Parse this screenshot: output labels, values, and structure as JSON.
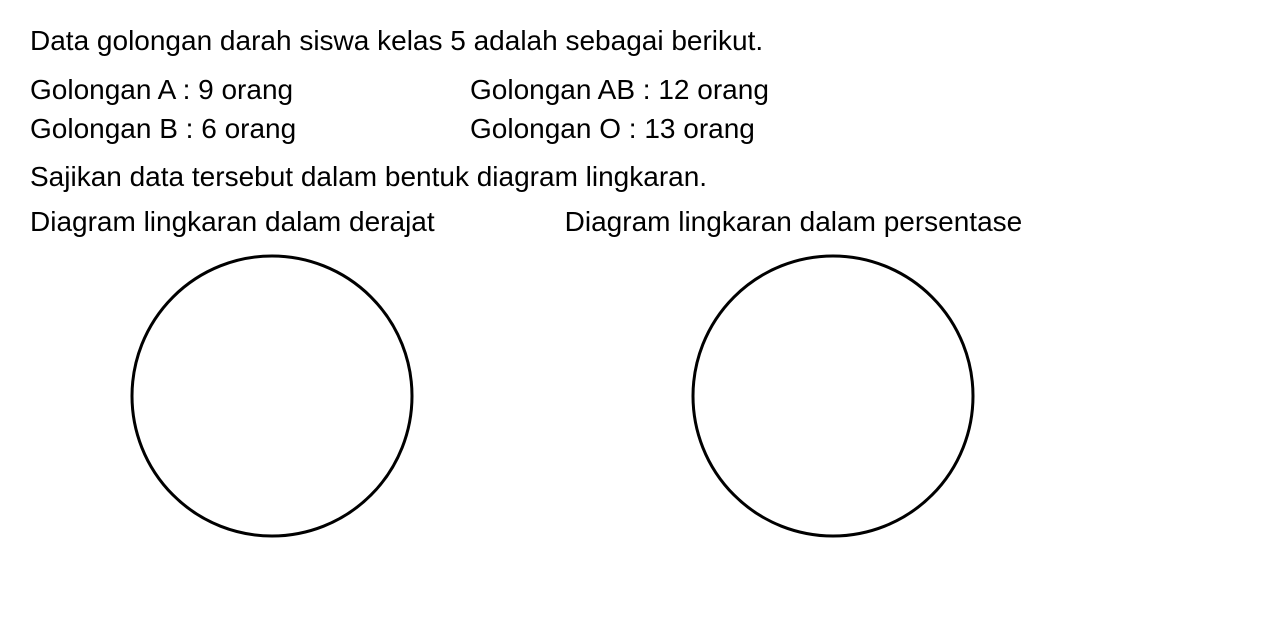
{
  "intro": "Data golongan darah siswa kelas 5 adalah sebagai berikut.",
  "data": {
    "row1": {
      "left": "Golongan A : 9 orang",
      "right": "Golongan AB : 12 orang"
    },
    "row2": {
      "left": "Golongan B : 6 orang",
      "right": "Golongan O  :  13 orang"
    }
  },
  "instruction": "Sajikan data tersebut dalam bentuk diagram lingkaran.",
  "diagrams": {
    "left_label": "Diagram lingkaran dalam derajat",
    "right_label": "Diagram lingkaran dalam persentase"
  },
  "circle": {
    "radius": 140,
    "stroke_color": "#000000",
    "stroke_width": 3,
    "fill": "none",
    "svg_size": 300
  },
  "text_color": "#000000",
  "background_color": "#ffffff",
  "font_size": 28
}
